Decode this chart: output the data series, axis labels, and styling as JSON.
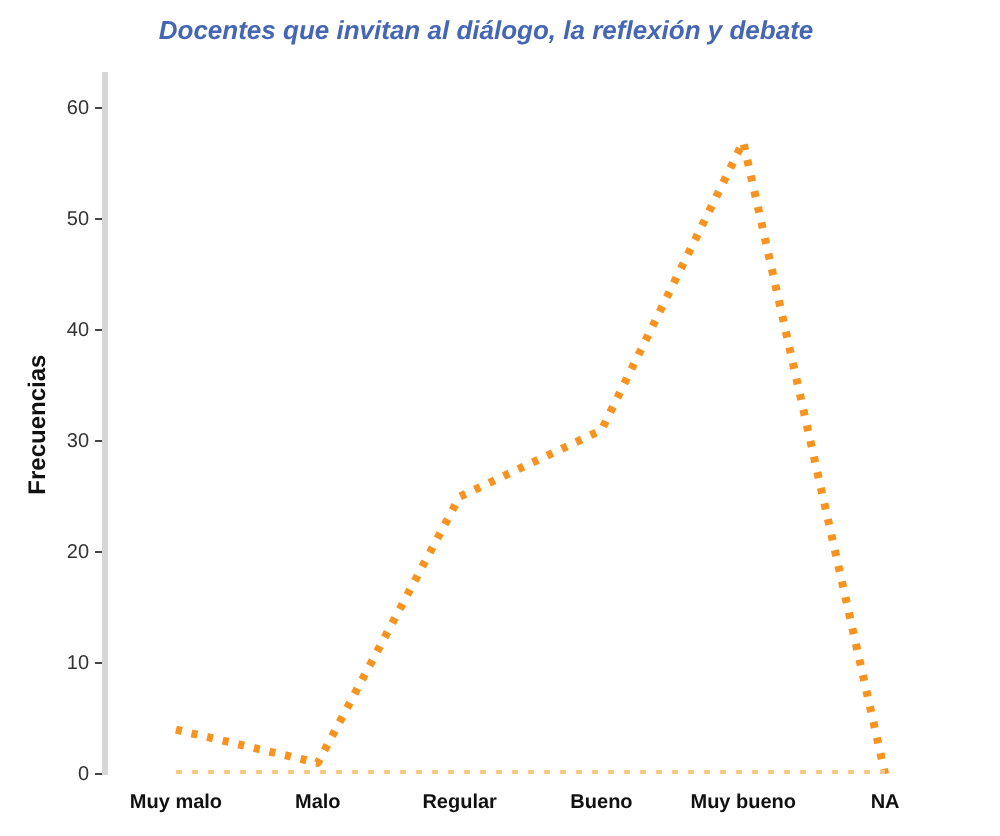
{
  "chart_data": {
    "type": "line",
    "title": "Docentes que invitan al diálogo, la reflexión y debate",
    "ylabel": "Frecuencias",
    "categories": [
      "Muy malo",
      "Malo",
      "Regular",
      "Bueno",
      "Muy bueno",
      "NA"
    ],
    "series": [
      {
        "color": "#f7931e",
        "values": [
          4,
          1,
          25,
          31,
          57,
          0
        ]
      },
      {
        "color": "#f9c98a",
        "values": [
          0,
          0,
          0,
          0,
          0,
          0
        ]
      }
    ],
    "ylim": [
      0,
      63
    ],
    "yticks": [
      0,
      10,
      20,
      30,
      40,
      50,
      60
    ],
    "grid": false,
    "legend": false,
    "marker": "none",
    "line_style": "dotted"
  }
}
